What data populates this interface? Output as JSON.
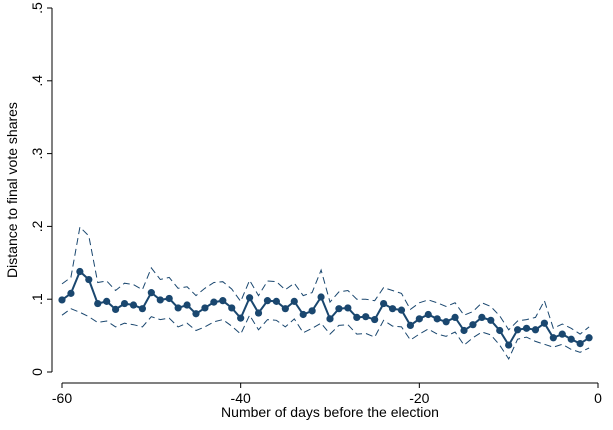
{
  "chart_data": {
    "type": "line",
    "xlabel": "Number of days before the election",
    "ylabel": "Distance to final vote shares",
    "xlim": [
      -60,
      0
    ],
    "ylim": [
      0,
      0.5
    ],
    "xticks": [
      -60,
      -40,
      -20,
      0
    ],
    "xtick_labels": [
      "-60",
      "-40",
      "-20",
      "0"
    ],
    "yticks": [
      0,
      0.1,
      0.2,
      0.3,
      0.4,
      0.5
    ],
    "ytick_labels": [
      "0",
      ".1",
      ".2",
      ".3",
      ".4",
      ".5"
    ],
    "grid": false,
    "colors": {
      "series": "#1a476f",
      "axis": "#000000"
    },
    "x": [
      -60,
      -59,
      -58,
      -57,
      -56,
      -55,
      -54,
      -53,
      -52,
      -51,
      -50,
      -49,
      -48,
      -47,
      -46,
      -45,
      -44,
      -43,
      -42,
      -41,
      -40,
      -39,
      -38,
      -37,
      -36,
      -35,
      -34,
      -33,
      -32,
      -31,
      -30,
      -29,
      -28,
      -27,
      -26,
      -25,
      -24,
      -23,
      -22,
      -21,
      -20,
      -19,
      -18,
      -17,
      -16,
      -15,
      -14,
      -13,
      -12,
      -11,
      -10,
      -9,
      -8,
      -7,
      -6,
      -5,
      -4,
      -3,
      -2,
      -1
    ],
    "series": [
      {
        "style": "solid-markers",
        "values": [
          0.099,
          0.108,
          0.138,
          0.127,
          0.094,
          0.097,
          0.086,
          0.094,
          0.092,
          0.087,
          0.109,
          0.099,
          0.101,
          0.088,
          0.092,
          0.08,
          0.088,
          0.096,
          0.098,
          0.088,
          0.074,
          0.102,
          0.081,
          0.098,
          0.097,
          0.087,
          0.097,
          0.079,
          0.084,
          0.103,
          0.073,
          0.087,
          0.088,
          0.075,
          0.076,
          0.072,
          0.094,
          0.087,
          0.085,
          0.064,
          0.073,
          0.079,
          0.073,
          0.069,
          0.075,
          0.057,
          0.065,
          0.075,
          0.071,
          0.057,
          0.037,
          0.058,
          0.06,
          0.058,
          0.067,
          0.047,
          0.052,
          0.045,
          0.039,
          0.047
        ]
      },
      {
        "style": "dashed",
        "values": [
          0.121,
          0.13,
          0.199,
          0.187,
          0.123,
          0.125,
          0.112,
          0.122,
          0.12,
          0.113,
          0.143,
          0.127,
          0.13,
          0.115,
          0.117,
          0.105,
          0.115,
          0.123,
          0.124,
          0.114,
          0.097,
          0.126,
          0.105,
          0.125,
          0.124,
          0.113,
          0.122,
          0.105,
          0.109,
          0.14,
          0.096,
          0.11,
          0.112,
          0.1,
          0.1,
          0.098,
          0.116,
          0.112,
          0.108,
          0.086,
          0.095,
          0.099,
          0.095,
          0.09,
          0.095,
          0.078,
          0.083,
          0.095,
          0.09,
          0.077,
          0.058,
          0.07,
          0.072,
          0.075,
          0.098,
          0.06,
          0.066,
          0.06,
          0.052,
          0.062
        ]
      },
      {
        "style": "dashed",
        "values": [
          0.078,
          0.087,
          0.082,
          0.076,
          0.068,
          0.07,
          0.062,
          0.067,
          0.065,
          0.062,
          0.076,
          0.072,
          0.074,
          0.062,
          0.067,
          0.057,
          0.062,
          0.069,
          0.072,
          0.063,
          0.052,
          0.078,
          0.058,
          0.072,
          0.071,
          0.062,
          0.073,
          0.054,
          0.06,
          0.067,
          0.052,
          0.064,
          0.065,
          0.052,
          0.053,
          0.048,
          0.071,
          0.063,
          0.062,
          0.044,
          0.052,
          0.059,
          0.052,
          0.049,
          0.055,
          0.037,
          0.047,
          0.055,
          0.051,
          0.037,
          0.018,
          0.045,
          0.048,
          0.042,
          0.038,
          0.034,
          0.038,
          0.031,
          0.027,
          0.033
        ]
      }
    ]
  }
}
